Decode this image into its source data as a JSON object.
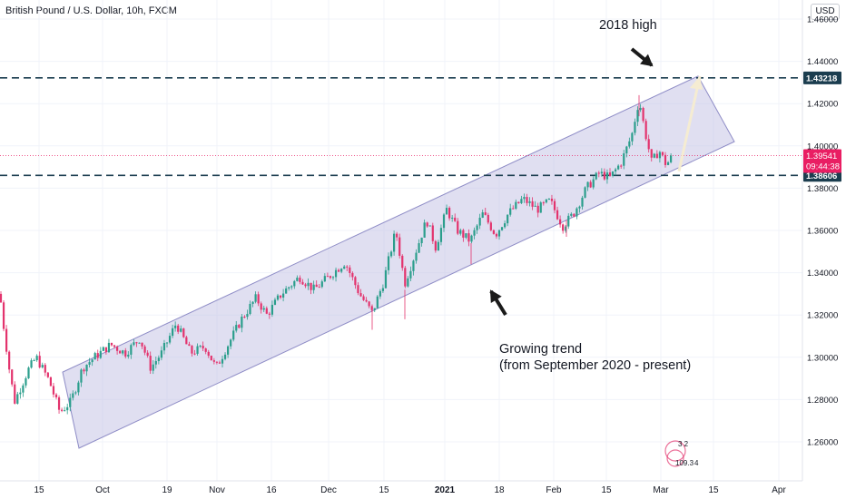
{
  "header": {
    "symbol_title": "British Pound / U.S. Dollar, 10h, FXCM"
  },
  "currency_button": "USD",
  "chart_data": {
    "type": "candlestick",
    "symbol": "British Pound / U.S. Dollar",
    "timeframe": "10h",
    "source": "FXCM",
    "y_range": [
      1.25,
      1.47
    ],
    "y_ticks": [
      "1.46000",
      "1.44000",
      "1.42000",
      "1.40000",
      "1.38000",
      "1.36000",
      "1.34000",
      "1.32000",
      "1.30000",
      "1.28000",
      "1.26000"
    ],
    "x_ticks": [
      "15",
      "Oct",
      "19",
      "Nov",
      "16",
      "Dec",
      "15",
      "2021",
      "18",
      "Feb",
      "15",
      "Mar",
      "15",
      "Apr"
    ],
    "price_path": [
      [
        1.33,
        0
      ],
      [
        1.318,
        3
      ],
      [
        1.295,
        10
      ],
      [
        1.279,
        16
      ],
      [
        1.285,
        22
      ],
      [
        1.294,
        31
      ],
      [
        1.3,
        40
      ],
      [
        1.289,
        54
      ],
      [
        1.274,
        66
      ],
      [
        1.279,
        78
      ],
      [
        1.295,
        91
      ],
      [
        1.3,
        104
      ],
      [
        1.306,
        122
      ],
      [
        1.302,
        138
      ],
      [
        1.309,
        154
      ],
      [
        1.295,
        166
      ],
      [
        1.302,
        178
      ],
      [
        1.316,
        194
      ],
      [
        1.302,
        210
      ],
      [
        1.305,
        226
      ],
      [
        1.295,
        238
      ],
      [
        1.305,
        250
      ],
      [
        1.318,
        266
      ],
      [
        1.328,
        282
      ],
      [
        1.32,
        294
      ],
      [
        1.33,
        310
      ],
      [
        1.338,
        330
      ],
      [
        1.332,
        346
      ],
      [
        1.338,
        362
      ],
      [
        1.345,
        380
      ],
      [
        1.33,
        396
      ],
      [
        1.321,
        410
      ],
      [
        1.335,
        422
      ],
      [
        1.36,
        436
      ],
      [
        1.335,
        446
      ],
      [
        1.35,
        458
      ],
      [
        1.365,
        470
      ],
      [
        1.352,
        480
      ],
      [
        1.37,
        492
      ],
      [
        1.36,
        504
      ],
      [
        1.355,
        518
      ],
      [
        1.368,
        532
      ],
      [
        1.358,
        546
      ],
      [
        1.368,
        560
      ],
      [
        1.375,
        576
      ],
      [
        1.37,
        592
      ],
      [
        1.374,
        606
      ],
      [
        1.362,
        620
      ],
      [
        1.368,
        632
      ],
      [
        1.38,
        646
      ],
      [
        1.387,
        660
      ],
      [
        1.385,
        672
      ],
      [
        1.392,
        684
      ],
      [
        1.405,
        696
      ],
      [
        1.422,
        704
      ],
      [
        1.408,
        710
      ],
      [
        1.392,
        718
      ],
      [
        1.398,
        726
      ],
      [
        1.391,
        734
      ],
      [
        1.3954,
        741
      ]
    ],
    "last_price_line": {
      "value": 1.39541,
      "label": "1.39541",
      "countdown": "09:44:38",
      "color": "#e91e63"
    },
    "horizontal_levels": [
      {
        "value": 1.43218,
        "label": "1.43218",
        "style": "dashed",
        "color": "#1b3d4f"
      },
      {
        "value": 1.38606,
        "label": "1.38606",
        "style": "dashed",
        "color": "#1b3d4f"
      }
    ],
    "channel": {
      "fill": "#c6c4e6",
      "stroke": "#8e8cc6",
      "corners": [
        [
          1.293,
          69
        ],
        [
          1.433,
          769
        ],
        [
          1.402,
          809
        ],
        [
          1.257,
          87
        ]
      ]
    },
    "projection_arrow": {
      "from": [
        1.388,
        748
      ],
      "to": [
        1.433,
        771
      ],
      "color": "#f5ecd2"
    },
    "annotations": [
      {
        "text": "2018 high"
      },
      {
        "text": "Growing trend"
      },
      {
        "text": "(from September 2020 - present)"
      }
    ],
    "candle_up_color": "#2b9e8c",
    "candle_down_color": "#e3336d",
    "watermark_text": [
      "3 2",
      "109.3",
      "4"
    ]
  }
}
